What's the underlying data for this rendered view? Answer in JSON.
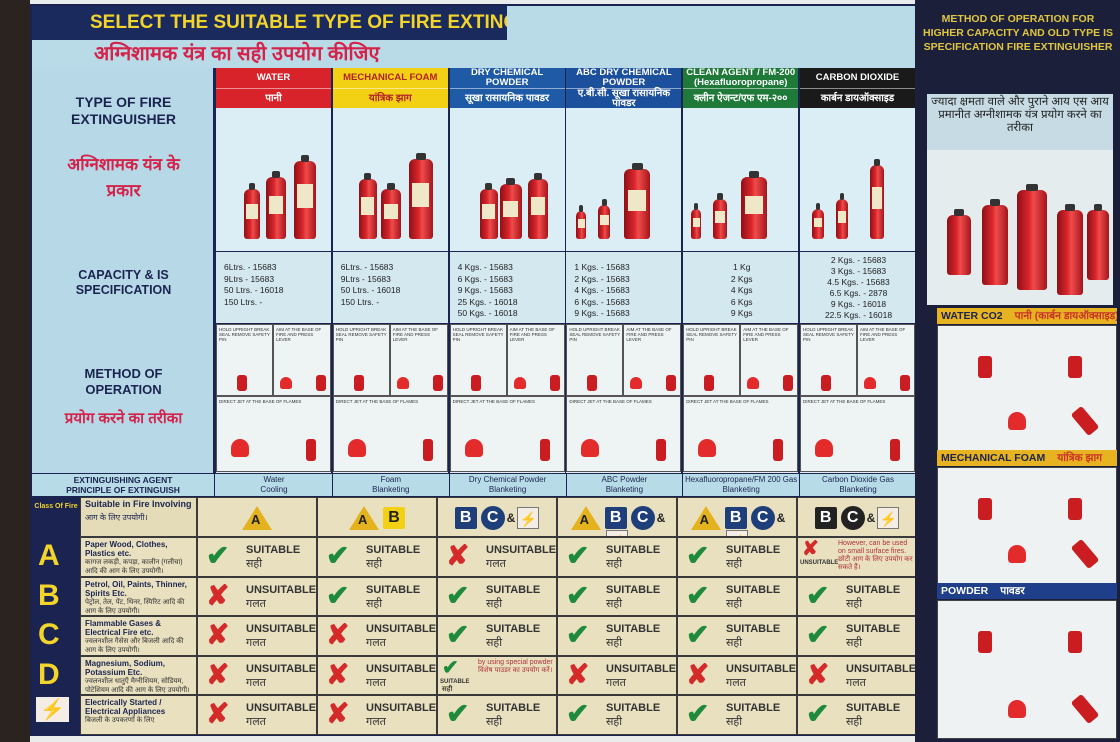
{
  "title": "SELECT THE SUITABLE TYPE OF FIRE EXTINGUISHER",
  "title_hindi": "अग्निशामक यंत्र का सही उपयोग कीजिए",
  "left": {
    "type_en": "TYPE OF FIRE EXTINGUISHER",
    "type_hi": "अग्निशामक यंत्र के प्रकार",
    "capacity": "CAPACITY & IS SPECIFICATION",
    "method_en": "METHOD OF OPERATION",
    "method_hi": "प्रयोग करने का तरीका",
    "agent": "EXTINGUISHING AGENT PRINCIPLE OF EXTINGUISH"
  },
  "method_text": {
    "step1": "HOLD UPRIGHT BREAK SEAL REMOVE SAFETY PIN",
    "step2": "AIM AT THE BASE OF FIRE AND PRESS LEVER",
    "step3": "DIRECT JET AT THE BASE OF FLAMES"
  },
  "columns": [
    {
      "name": "WATER",
      "name_hindi": "पानी",
      "color": "#d8232a",
      "text_color": "#ffffff",
      "capacities": [
        "6Ltrs.  - 15683",
        "9Ltrs  - 15683",
        "50 Ltrs. - 16018",
        "150 Ltrs. -"
      ],
      "agent": "Water",
      "principle": "Cooling"
    },
    {
      "name": "MECHANICAL FOAM",
      "name_hindi": "यांत्रिक झाग",
      "color": "#f2d014",
      "text_color": "#b3202a",
      "capacities": [
        "6Ltrs.  - 15683",
        "9Ltrs  - 15683",
        "50 Ltrs. - 16018",
        "150 Ltrs. -"
      ],
      "agent": "Foam",
      "principle": "Blanketing"
    },
    {
      "name": "DRY CHEMICAL POWDER",
      "name_hindi": "सूखा रासायनिक पावडर",
      "color": "#1f5aa6",
      "text_color": "#ffffff",
      "capacities": [
        "4 Kgs. - 15683",
        "6 Kgs. - 15683",
        "9 Kgs. - 15683",
        "25 Kgs. - 16018",
        "50 Kgs. - 16018"
      ],
      "agent": "Dry Chemical Powder",
      "principle": "Blanketing"
    },
    {
      "name": "ABC DRY CHEMICAL POWDER",
      "name_hindi": "ए.बी.सी. सूखा रासायनिक पावडर",
      "color": "#1c4f9c",
      "text_color": "#ffffff",
      "capacities": [
        "1 Kgs. - 15683",
        "2 Kgs. - 15683",
        "4 Kgs. - 15683",
        "6 Kgs. - 15683",
        "9 Kgs. - 15683"
      ],
      "agent": "ABC Powder",
      "principle": "Blanketing"
    },
    {
      "name": "CLEAN AGENT / FM-200 (Hexafluoropropane)",
      "name_hindi": "क्लीन ऐजन्ट/एफ एम-२००",
      "color": "#1f7a3a",
      "text_color": "#ffffff",
      "capacities": [
        "1 Kg",
        "2 Kgs",
        "4 Kgs",
        "6 Kgs",
        "9 Kgs"
      ],
      "agent": "Hexafluoropropane/FM 200 Gas",
      "principle": "Blanketing"
    },
    {
      "name": "CARBON DIOXIDE",
      "name_hindi": "कार्बन डायऑक्साइड",
      "color": "#1a1a1a",
      "text_color": "#ffffff",
      "capacities": [
        "2 Kgs.  - 15683",
        "3 Kgs.  - 15683",
        "4.5 Kgs. - 15683",
        "6.5 Kgs. - 2878",
        "9 Kgs.  - 16018",
        "22.5 Kgs. - 16018"
      ],
      "agent": "Carbon Dioxide Gas",
      "principle": "Blanketing"
    }
  ],
  "class_table": {
    "class_label": "Class Of Fire",
    "header_en": "Suitable in Fire Involving",
    "header_hi": "आग के लिए उपयोगी।",
    "amp": "&",
    "badges": [
      [
        {
          "type": "A",
          "color": "#e3b21c"
        }
      ],
      [
        {
          "type": "A",
          "color": "#e3b21c"
        },
        {
          "type": "B",
          "color": "#f2d014"
        }
      ],
      [
        {
          "type": "B",
          "color": "#1f3f7a"
        },
        {
          "type": "C",
          "color": "#1f3f7a"
        },
        {
          "type": "E",
          "color": "#d42a2a"
        }
      ],
      [
        {
          "type": "A",
          "color": "#e3b21c"
        },
        {
          "type": "B",
          "color": "#1f3f7a"
        },
        {
          "type": "C",
          "color": "#1f3f7a"
        },
        {
          "type": "E",
          "color": "#d42a2a"
        }
      ],
      [
        {
          "type": "A",
          "color": "#e3b21c"
        },
        {
          "type": "B",
          "color": "#1f3f7a"
        },
        {
          "type": "C",
          "color": "#1f3f7a"
        },
        {
          "type": "E",
          "color": "#d42a2a"
        }
      ],
      [
        {
          "type": "B",
          "color": "#222222"
        },
        {
          "type": "C",
          "color": "#222222"
        },
        {
          "type": "E",
          "color": "#d42a2a"
        }
      ]
    ],
    "rows": [
      {
        "class": "A",
        "en": "Paper Wood, Clothes, Plastics etc.",
        "hi": "कागज लकड़ी, कपड़ा, कालीन (गलीचा) आदि की आग के लिए उपयोगी।",
        "cells": [
          {
            "ok": true,
            "label": "SUITABLE",
            "hi": "सही"
          },
          {
            "ok": true,
            "label": "SUITABLE",
            "hi": "सही"
          },
          {
            "ok": false,
            "label": "UNSUITABLE",
            "hi": "गलत"
          },
          {
            "ok": true,
            "label": "SUITABLE",
            "hi": "सही"
          },
          {
            "ok": true,
            "label": "SUITABLE",
            "hi": "सही"
          },
          {
            "ok": false,
            "label": "UNSUITABLE",
            "hi": "",
            "note": "However, can be used on small surface fires. छोटी आग के लिए उपयोग कर सकते हैं।"
          }
        ]
      },
      {
        "class": "B",
        "en": "Petrol, Oil, Paints, Thinner, Spirits Etc.",
        "hi": "पेट्रोल, तेल, पेंट, थिनर, स्पिरिट आदि की आग के लिए उपयोगी।",
        "cells": [
          {
            "ok": false,
            "label": "UNSUITABLE",
            "hi": "गलत"
          },
          {
            "ok": true,
            "label": "SUITABLE",
            "hi": "सही"
          },
          {
            "ok": true,
            "label": "SUITABLE",
            "hi": "सही"
          },
          {
            "ok": true,
            "label": "SUITABLE",
            "hi": "सही"
          },
          {
            "ok": true,
            "label": "SUITABLE",
            "hi": "सही"
          },
          {
            "ok": true,
            "label": "SUITABLE",
            "hi": "सही"
          }
        ]
      },
      {
        "class": "C",
        "en": "Flammable Gases & Electrical Fire etc.",
        "hi": "ज्वलनशील गैसेस और बिजली आदि की आग के लिए उपयोगी।",
        "cells": [
          {
            "ok": false,
            "label": "UNSUITABLE",
            "hi": "गलत"
          },
          {
            "ok": false,
            "label": "UNSUITABLE",
            "hi": "गलत"
          },
          {
            "ok": true,
            "label": "SUITABLE",
            "hi": "सही"
          },
          {
            "ok": true,
            "label": "SUITABLE",
            "hi": "सही"
          },
          {
            "ok": true,
            "label": "SUITABLE",
            "hi": "सही"
          },
          {
            "ok": true,
            "label": "SUITABLE",
            "hi": "सही"
          }
        ]
      },
      {
        "class": "D",
        "en": "Magnesium, Sodium, Potassium Etc.",
        "hi": "ज्वलनशील धातुएँ मैग्नीशियम, सोडियम, पोटेशियम आदि की आग के लिए उपयोगी।",
        "cells": [
          {
            "ok": false,
            "label": "UNSUITABLE",
            "hi": "गलत"
          },
          {
            "ok": false,
            "label": "UNSUITABLE",
            "hi": "गलत"
          },
          {
            "ok": true,
            "label": "SUITABLE",
            "hi": "सही",
            "note": "by using special powder विशेष पाउडर का उपयोग करें।"
          },
          {
            "ok": false,
            "label": "UNSUITABLE",
            "hi": "गलत"
          },
          {
            "ok": false,
            "label": "UNSUITABLE",
            "hi": "गलत"
          },
          {
            "ok": false,
            "label": "UNSUITABLE",
            "hi": "गलत"
          }
        ]
      },
      {
        "class": "E",
        "en": "Electrically Started / Electrical Appliances",
        "hi": "बिजली के उपकरणों के लिए",
        "cells": [
          {
            "ok": false,
            "label": "UNSUITABLE",
            "hi": "गलत"
          },
          {
            "ok": false,
            "label": "UNSUITABLE",
            "hi": "गलत"
          },
          {
            "ok": true,
            "label": "SUITABLE",
            "hi": "सही"
          },
          {
            "ok": true,
            "label": "SUITABLE",
            "hi": "सही"
          },
          {
            "ok": true,
            "label": "SUITABLE",
            "hi": "सही"
          },
          {
            "ok": true,
            "label": "SUITABLE",
            "hi": "सही"
          }
        ]
      }
    ]
  },
  "right_panel": {
    "title": "METHOD OF OPERATION FOR HIGHER CAPACITY AND OLD TYPE IS SPECIFICATION FIRE EXTINGUISHER",
    "title_hindi": "ज्यादा क्षमता वाले और पुराने आय एस आय प्रमानीत अग्नीशामक यंत्र प्रयोग करने का तरीका",
    "sections": [
      {
        "en": "WATER CO2",
        "hi": "पानी (कार्बन डायऑक्साइड)",
        "color": "#e8b321"
      },
      {
        "en": "MECHANICAL FOAM",
        "hi": "यांत्रिक झाग",
        "color": "#e8b321"
      },
      {
        "en": "POWDER",
        "hi": "पावडर",
        "color": "#1f3f8a"
      }
    ]
  }
}
